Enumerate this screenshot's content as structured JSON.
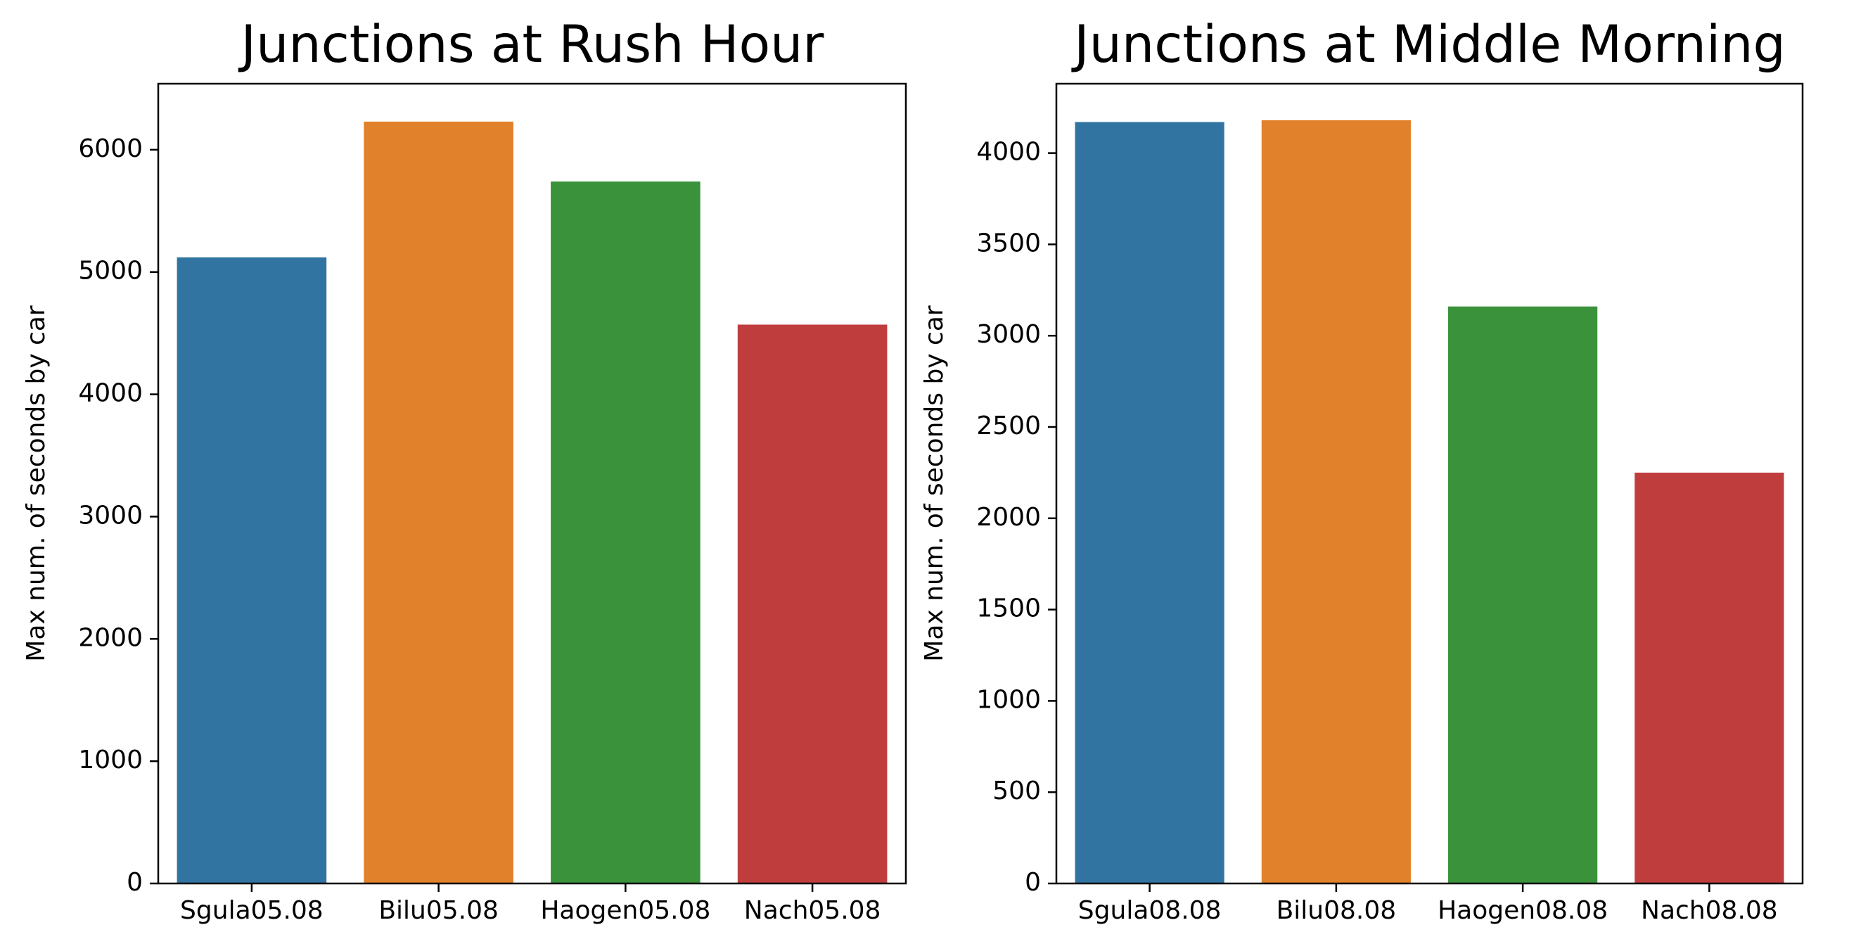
{
  "chart_data": [
    {
      "type": "bar",
      "title": "Junctions at Rush Hour",
      "xlabel": "",
      "ylabel": "Max num. of seconds by car",
      "categories": [
        "Sgula05.08",
        "Bilu05.08",
        "Haogen05.08",
        "Nach05.08"
      ],
      "values": [
        5120,
        6230,
        5740,
        4570
      ],
      "colors": [
        "#3274a1",
        "#e1812c",
        "#3a923a",
        "#c03d3e"
      ],
      "ylim": [
        0,
        6540
      ],
      "yticks": [
        0,
        1000,
        2000,
        3000,
        4000,
        5000,
        6000
      ],
      "grid": false
    },
    {
      "type": "bar",
      "title": "Junctions at Middle Morning",
      "xlabel": "",
      "ylabel": "Max num. of seconds by car",
      "categories": [
        "Sgula08.08",
        "Bilu08.08",
        "Haogen08.08",
        "Nach08.08"
      ],
      "values": [
        4170,
        4180,
        3160,
        2250
      ],
      "colors": [
        "#3274a1",
        "#e1812c",
        "#3a923a",
        "#c03d3e"
      ],
      "ylim": [
        0,
        4380
      ],
      "yticks": [
        0,
        500,
        1000,
        1500,
        2000,
        2500,
        3000,
        3500,
        4000
      ],
      "grid": false
    }
  ]
}
